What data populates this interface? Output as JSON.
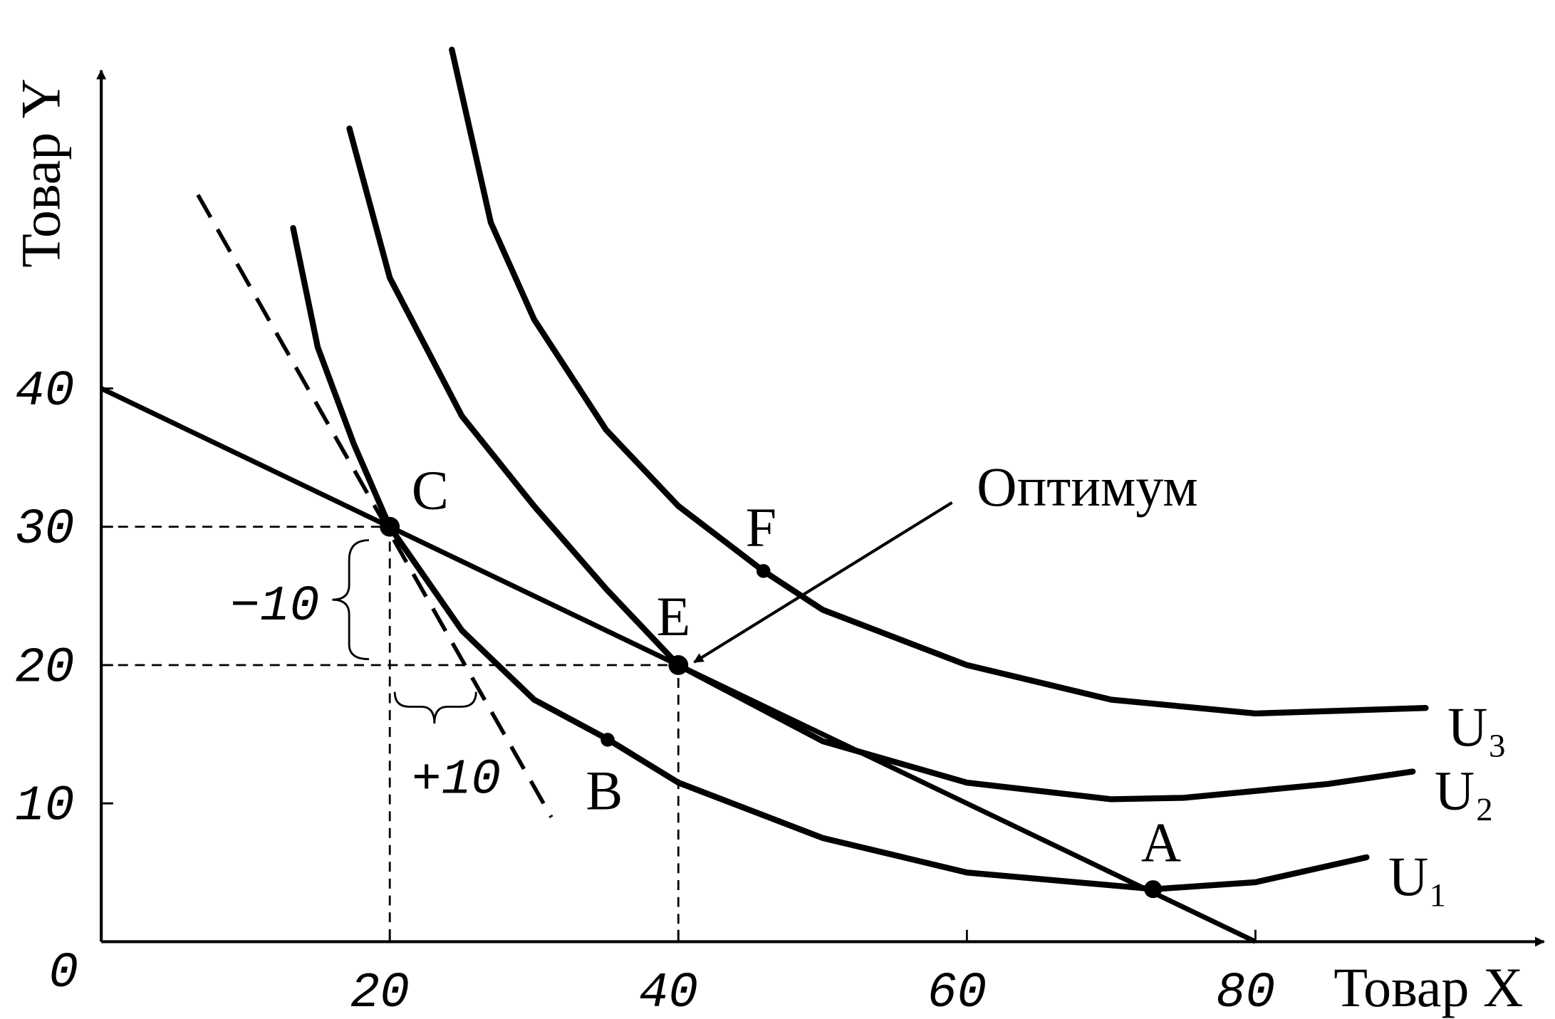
{
  "chart_data": {
    "type": "line",
    "x_label": "Товар X",
    "y_label": "Товар Y",
    "xlim": [
      0,
      100
    ],
    "ylim": [
      0,
      63
    ],
    "xticks": [
      0,
      20,
      40,
      60,
      80
    ],
    "yticks": [
      10,
      20,
      30,
      40
    ],
    "series": [
      {
        "name": "U₁",
        "color": "#000000",
        "x": [
          13.3,
          15,
          17.5,
          20,
          25,
          30,
          35,
          40,
          50,
          60,
          73,
          80,
          87.7
        ],
        "values": [
          51.6,
          43,
          36,
          30,
          22.5,
          17.5,
          14.7,
          11.5,
          7.5,
          5,
          3.8,
          4.3,
          6.1
        ]
      },
      {
        "name": "U₂",
        "color": "#000000",
        "x": [
          17.2,
          20,
          25,
          30,
          35,
          40,
          50,
          60,
          70,
          75,
          85,
          90.9
        ],
        "values": [
          58.8,
          48,
          38,
          31.5,
          25.5,
          20,
          14.5,
          11.5,
          10.3,
          10.4,
          11.4,
          12.3
        ]
      },
      {
        "name": "U₃",
        "color": "#000000",
        "x": [
          24.3,
          27,
          30,
          35,
          40,
          45.9,
          50,
          60,
          70,
          80,
          91.8
        ],
        "values": [
          64.5,
          52,
          45,
          37,
          31.5,
          26.8,
          24,
          20,
          17.5,
          16.5,
          16.9
        ]
      }
    ],
    "budget_line": {
      "x": [
        0,
        80
      ],
      "values": [
        40,
        0
      ]
    },
    "tangent_line": {
      "x": [
        6.7,
        31.2
      ],
      "values": [
        54,
        9
      ]
    },
    "points": [
      {
        "name": "A",
        "x": 72.9,
        "y": 3.8
      },
      {
        "name": "B",
        "x": 35.1,
        "y": 14.6
      },
      {
        "name": "C",
        "x": 20,
        "y": 30
      },
      {
        "name": "E",
        "x": 40,
        "y": 20
      },
      {
        "name": "F",
        "x": 45.9,
        "y": 26.8
      }
    ],
    "annotations": {
      "optimum": "Оптимум",
      "minus": "−10",
      "plus": "+10"
    }
  }
}
